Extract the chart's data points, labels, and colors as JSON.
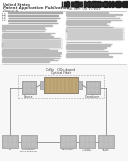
{
  "bg_color": "#ffffff",
  "text_dark": "#444444",
  "text_med": "#666666",
  "text_light": "#888888",
  "bar_dark": "#222222",
  "bar_light": "#cccccc",
  "diagram_bg": "#f5f5f5",
  "box_gray": "#c0c0c0",
  "box_edge": "#888888",
  "fiber_fill": "#c0a878",
  "fiber_edge": "#807060",
  "line_col": "#666666",
  "dash_edge": "#999999",
  "top_label1": "CdSe   QDs-doped",
  "top_label2": "Optical Fiber",
  "src_label": "Source",
  "trans_label": "Transducer",
  "bottom_labels": [
    "PC",
    "Polarization\nstate analyzer",
    "Collimator",
    "Linear\nPolarizer",
    "He-Ne\nLaser"
  ],
  "header1": "United States",
  "header2": "Patent Application Publication",
  "header3": "Zhao et al.",
  "pub_no": "Pub. No.: US 2013/0276593 A1",
  "pub_date": "Pub. Date:  Oct. 17, 2013"
}
